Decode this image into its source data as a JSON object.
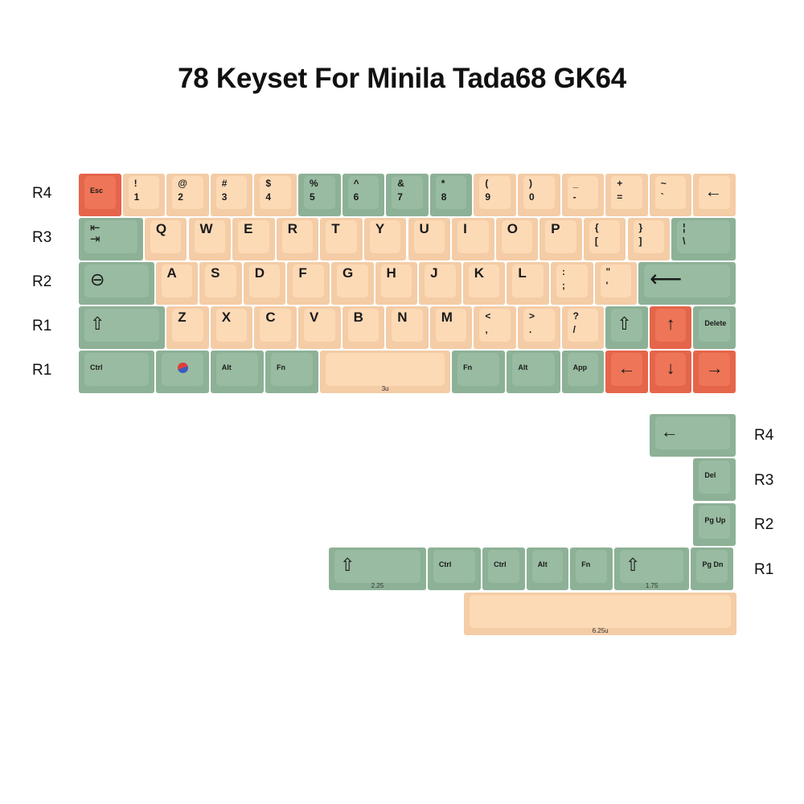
{
  "title": "78 Keyset For Minila Tada68 GK64",
  "colors": {
    "peach": "#FDDAB6",
    "green": "#98BBA1",
    "red": "#EE7557"
  },
  "row_labels_left": [
    "R4",
    "R3",
    "R2",
    "R1",
    "R1"
  ],
  "row_labels_right": [
    "R4",
    "R3",
    "R2",
    "R1"
  ],
  "main_rows": [
    [
      {
        "label": "Esc",
        "color": "red"
      },
      {
        "top": "!",
        "bottom": "1",
        "color": "peach"
      },
      {
        "top": "@",
        "bottom": "2",
        "color": "peach"
      },
      {
        "top": "#",
        "bottom": "3",
        "color": "peach"
      },
      {
        "top": "$",
        "bottom": "4",
        "color": "peach"
      },
      {
        "top": "%",
        "bottom": "5",
        "color": "green"
      },
      {
        "top": "^",
        "bottom": "6",
        "color": "green"
      },
      {
        "top": "&",
        "bottom": "7",
        "color": "green"
      },
      {
        "top": "*",
        "bottom": "8",
        "color": "green"
      },
      {
        "top": "(",
        "bottom": "9",
        "color": "peach"
      },
      {
        "top": ")",
        "bottom": "0",
        "color": "peach"
      },
      {
        "top": "_",
        "bottom": "-",
        "color": "peach"
      },
      {
        "top": "+",
        "bottom": "=",
        "color": "peach"
      },
      {
        "top": "~",
        "bottom": "`",
        "color": "peach"
      },
      {
        "icon": "backspace-arrow",
        "glyph": "←",
        "color": "peach"
      }
    ],
    [
      {
        "icon": "tab",
        "glyph": "⇤\n⇥",
        "color": "green"
      },
      {
        "label": "Q",
        "color": "peach"
      },
      {
        "label": "W",
        "color": "peach"
      },
      {
        "label": "E",
        "color": "peach"
      },
      {
        "label": "R",
        "color": "peach"
      },
      {
        "label": "T",
        "color": "peach"
      },
      {
        "label": "Y",
        "color": "peach"
      },
      {
        "label": "U",
        "color": "peach"
      },
      {
        "label": "I",
        "color": "peach"
      },
      {
        "label": "O",
        "color": "peach"
      },
      {
        "label": "P",
        "color": "peach"
      },
      {
        "top": "{",
        "bottom": "[",
        "color": "peach"
      },
      {
        "top": "}",
        "bottom": "]",
        "color": "peach"
      },
      {
        "top": "¦",
        "bottom": "\\",
        "color": "green"
      }
    ],
    [
      {
        "icon": "caps-lock",
        "glyph": "⊖",
        "color": "green"
      },
      {
        "label": "A",
        "color": "peach"
      },
      {
        "label": "S",
        "color": "peach"
      },
      {
        "label": "D",
        "color": "peach"
      },
      {
        "label": "F",
        "color": "peach"
      },
      {
        "label": "G",
        "color": "peach"
      },
      {
        "label": "H",
        "color": "peach"
      },
      {
        "label": "J",
        "color": "peach"
      },
      {
        "label": "K",
        "color": "peach"
      },
      {
        "label": "L",
        "color": "peach"
      },
      {
        "top": ":",
        "bottom": ";",
        "color": "peach"
      },
      {
        "top": "\"",
        "bottom": "'",
        "color": "peach"
      },
      {
        "icon": "enter",
        "glyph": "⟵",
        "color": "green"
      }
    ],
    [
      {
        "icon": "shift",
        "glyph": "⇧",
        "color": "green"
      },
      {
        "label": "Z",
        "color": "peach"
      },
      {
        "label": "X",
        "color": "peach"
      },
      {
        "label": "C",
        "color": "peach"
      },
      {
        "label": "V",
        "color": "peach"
      },
      {
        "label": "B",
        "color": "peach"
      },
      {
        "label": "N",
        "color": "peach"
      },
      {
        "label": "M",
        "color": "peach"
      },
      {
        "top": "<",
        "bottom": ",",
        "color": "peach"
      },
      {
        "top": ">",
        "bottom": ".",
        "color": "peach"
      },
      {
        "top": "?",
        "bottom": "/",
        "color": "peach"
      },
      {
        "icon": "shift",
        "glyph": "⇧",
        "color": "green"
      },
      {
        "icon": "arrow-up",
        "glyph": "↑",
        "color": "red"
      },
      {
        "label": "Delete",
        "color": "green"
      }
    ],
    [
      {
        "label": "Ctrl",
        "color": "green"
      },
      {
        "icon": "korean-flag",
        "color": "green"
      },
      {
        "label": "Alt",
        "color": "green"
      },
      {
        "label": "Fn",
        "color": "green"
      },
      {
        "size": "3u",
        "color": "peach"
      },
      {
        "label": "Fn",
        "color": "green"
      },
      {
        "label": "Alt",
        "color": "green"
      },
      {
        "label": "App",
        "color": "green"
      },
      {
        "icon": "arrow-left",
        "glyph": "←",
        "color": "red"
      },
      {
        "icon": "arrow-down",
        "glyph": "↓",
        "color": "red"
      },
      {
        "icon": "arrow-right",
        "glyph": "→",
        "color": "red"
      }
    ]
  ],
  "extra_rows": [
    [
      {
        "icon": "backspace-arrow",
        "glyph": "←",
        "color": "green"
      }
    ],
    [
      {
        "label": "Del",
        "color": "green"
      }
    ],
    [
      {
        "label": "Pg Up",
        "color": "green"
      }
    ],
    [
      {
        "icon": "shift",
        "glyph": "⇧",
        "size": "2.25",
        "color": "green"
      },
      {
        "label": "Ctrl",
        "color": "green"
      },
      {
        "label": "Ctrl",
        "color": "green"
      },
      {
        "label": "Alt",
        "color": "green"
      },
      {
        "label": "Fn",
        "color": "green"
      },
      {
        "icon": "shift",
        "glyph": "⇧",
        "size": "1.75",
        "color": "green"
      },
      {
        "label": "Pg Dn",
        "color": "green"
      }
    ],
    [
      {
        "size": "6.25u",
        "color": "peach"
      }
    ]
  ]
}
